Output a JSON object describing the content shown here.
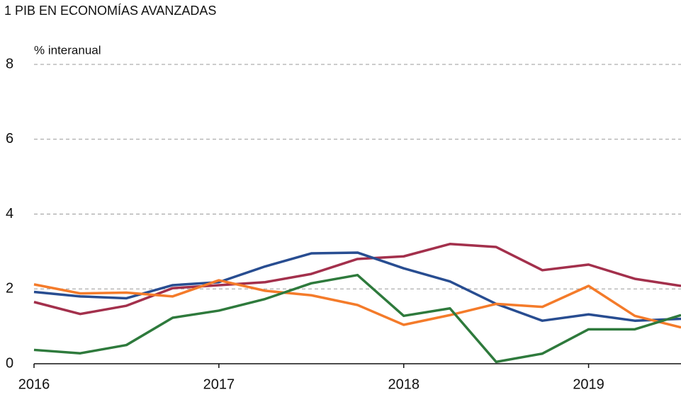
{
  "chart_data": {
    "type": "line",
    "title": "1  PIB EN ECONOMÍAS AVANZADAS",
    "y_label": "% interanual",
    "x": [
      2016,
      2016.25,
      2016.5,
      2016.75,
      2017,
      2017.25,
      2017.5,
      2017.75,
      2018,
      2018.25,
      2018.5,
      2018.75,
      2019,
      2019.25,
      2019.5
    ],
    "xlim": [
      2016,
      2019.5
    ],
    "xticks": [
      2016,
      2017,
      2018,
      2019
    ],
    "ylim": [
      0,
      8
    ],
    "yticks": [
      0,
      2,
      4,
      6,
      8
    ],
    "grid": true,
    "series": [
      {
        "color": "#a3304c",
        "values": [
          1.65,
          1.33,
          1.55,
          2.02,
          2.1,
          2.18,
          2.4,
          2.8,
          2.87,
          3.2,
          3.12,
          2.5,
          2.65,
          2.27,
          2.08
        ]
      },
      {
        "color": "#284d91",
        "values": [
          1.92,
          1.8,
          1.75,
          2.1,
          2.18,
          2.6,
          2.95,
          2.97,
          2.55,
          2.2,
          1.6,
          1.15,
          1.32,
          1.15,
          1.2
        ]
      },
      {
        "color": "#f47b2a",
        "values": [
          2.12,
          1.88,
          1.9,
          1.8,
          2.23,
          1.95,
          1.83,
          1.57,
          1.04,
          1.3,
          1.6,
          1.52,
          2.08,
          1.28,
          0.97
        ]
      },
      {
        "color": "#2e7a3c",
        "values": [
          0.37,
          0.28,
          0.5,
          1.23,
          1.42,
          1.73,
          2.15,
          2.37,
          1.28,
          1.48,
          0.05,
          0.27,
          0.92,
          0.92,
          1.3
        ]
      }
    ]
  }
}
